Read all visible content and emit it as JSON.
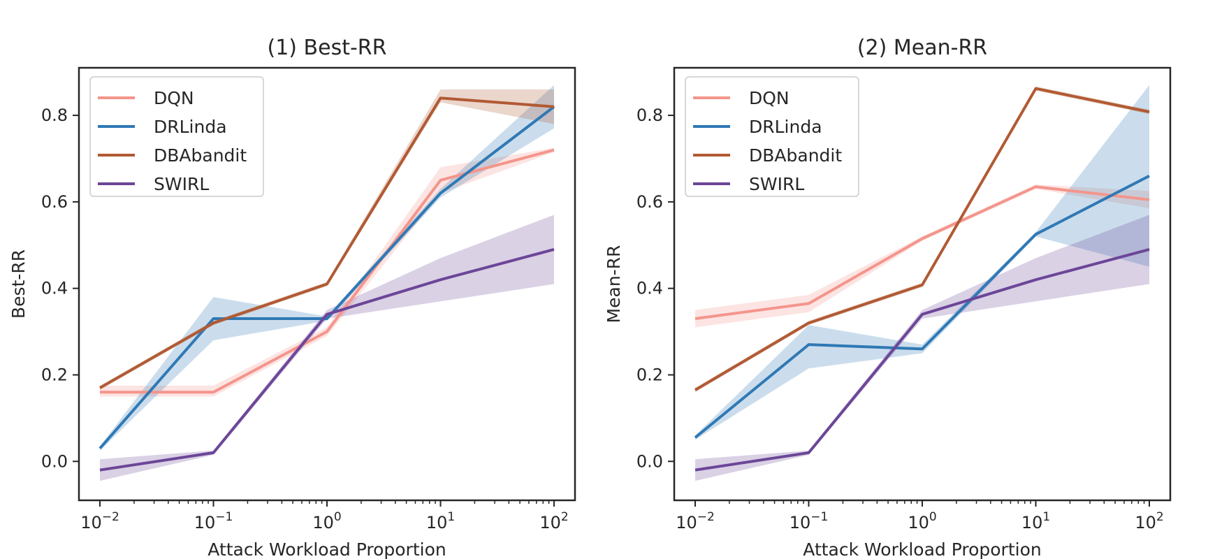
{
  "chart_data": [
    {
      "type": "line",
      "title": "(1) Best-RR",
      "xlabel": "Attack Workload Proportion",
      "ylabel": "Best-RR",
      "xscale": "log",
      "x": [
        0.01,
        0.1,
        1,
        10,
        100
      ],
      "x_tick_labels": [
        {
          "base": "10",
          "exp": "−2"
        },
        {
          "base": "10",
          "exp": "−1"
        },
        {
          "base": "10",
          "exp": "0"
        },
        {
          "base": "10",
          "exp": "1"
        },
        {
          "base": "10",
          "exp": "2"
        }
      ],
      "ylim": [
        -0.09,
        0.91
      ],
      "y_ticks": [
        0.0,
        0.2,
        0.4,
        0.6,
        0.8
      ],
      "y_tick_labels": [
        "0.0",
        "0.2",
        "0.4",
        "0.6",
        "0.8"
      ],
      "grid": false,
      "legend_position": "upper-left",
      "series": [
        {
          "name": "DQN",
          "color": "#f4958c",
          "values": [
            0.16,
            0.16,
            0.3,
            0.65,
            0.72
          ],
          "lower": [
            0.15,
            0.15,
            0.29,
            0.62,
            0.715
          ],
          "upper": [
            0.175,
            0.175,
            0.31,
            0.68,
            0.725
          ]
        },
        {
          "name": "DRLinda",
          "color": "#2f79b5",
          "values": [
            0.03,
            0.33,
            0.33,
            0.62,
            0.82
          ],
          "lower": [
            0.025,
            0.28,
            0.325,
            0.61,
            0.77
          ],
          "upper": [
            0.035,
            0.38,
            0.335,
            0.63,
            0.87
          ]
        },
        {
          "name": "DBAbandit",
          "color": "#b15a34",
          "values": [
            0.17,
            0.32,
            0.41,
            0.84,
            0.82
          ],
          "lower": [
            0.165,
            0.315,
            0.405,
            0.83,
            0.78
          ],
          "upper": [
            0.175,
            0.325,
            0.415,
            0.86,
            0.86
          ]
        },
        {
          "name": "SWIRL",
          "color": "#6c4698",
          "values": [
            -0.02,
            0.02,
            0.34,
            0.42,
            0.49
          ],
          "lower": [
            -0.045,
            0.015,
            0.33,
            0.37,
            0.41
          ],
          "upper": [
            0.005,
            0.025,
            0.35,
            0.47,
            0.57
          ]
        }
      ]
    },
    {
      "type": "line",
      "title": "(2) Mean-RR",
      "xlabel": "Attack Workload Proportion",
      "ylabel": "Mean-RR",
      "xscale": "log",
      "x": [
        0.01,
        0.1,
        1,
        10,
        100
      ],
      "x_tick_labels": [
        {
          "base": "10",
          "exp": "−2"
        },
        {
          "base": "10",
          "exp": "−1"
        },
        {
          "base": "10",
          "exp": "0"
        },
        {
          "base": "10",
          "exp": "1"
        },
        {
          "base": "10",
          "exp": "2"
        }
      ],
      "ylim": [
        -0.09,
        0.91
      ],
      "y_ticks": [
        0.0,
        0.2,
        0.4,
        0.6,
        0.8
      ],
      "y_tick_labels": [
        "0.0",
        "0.2",
        "0.4",
        "0.6",
        "0.8"
      ],
      "grid": false,
      "legend_position": "upper-left",
      "series": [
        {
          "name": "DQN",
          "color": "#f4958c",
          "values": [
            0.33,
            0.365,
            0.515,
            0.635,
            0.605
          ],
          "lower": [
            0.31,
            0.345,
            0.51,
            0.63,
            0.585
          ],
          "upper": [
            0.35,
            0.385,
            0.52,
            0.64,
            0.625
          ]
        },
        {
          "name": "DRLinda",
          "color": "#2f79b5",
          "values": [
            0.055,
            0.27,
            0.26,
            0.525,
            0.66
          ],
          "lower": [
            0.05,
            0.215,
            0.25,
            0.52,
            0.45
          ],
          "upper": [
            0.06,
            0.315,
            0.27,
            0.53,
            0.87
          ]
        },
        {
          "name": "DBAbandit",
          "color": "#b15a34",
          "values": [
            0.165,
            0.32,
            0.408,
            0.862,
            0.808
          ],
          "lower": [
            0.16,
            0.315,
            0.403,
            0.857,
            0.803
          ],
          "upper": [
            0.17,
            0.325,
            0.413,
            0.867,
            0.813
          ]
        },
        {
          "name": "SWIRL",
          "color": "#6c4698",
          "values": [
            -0.02,
            0.02,
            0.34,
            0.42,
            0.49
          ],
          "lower": [
            -0.045,
            0.015,
            0.33,
            0.37,
            0.41
          ],
          "upper": [
            0.005,
            0.025,
            0.35,
            0.47,
            0.57
          ]
        }
      ]
    }
  ]
}
